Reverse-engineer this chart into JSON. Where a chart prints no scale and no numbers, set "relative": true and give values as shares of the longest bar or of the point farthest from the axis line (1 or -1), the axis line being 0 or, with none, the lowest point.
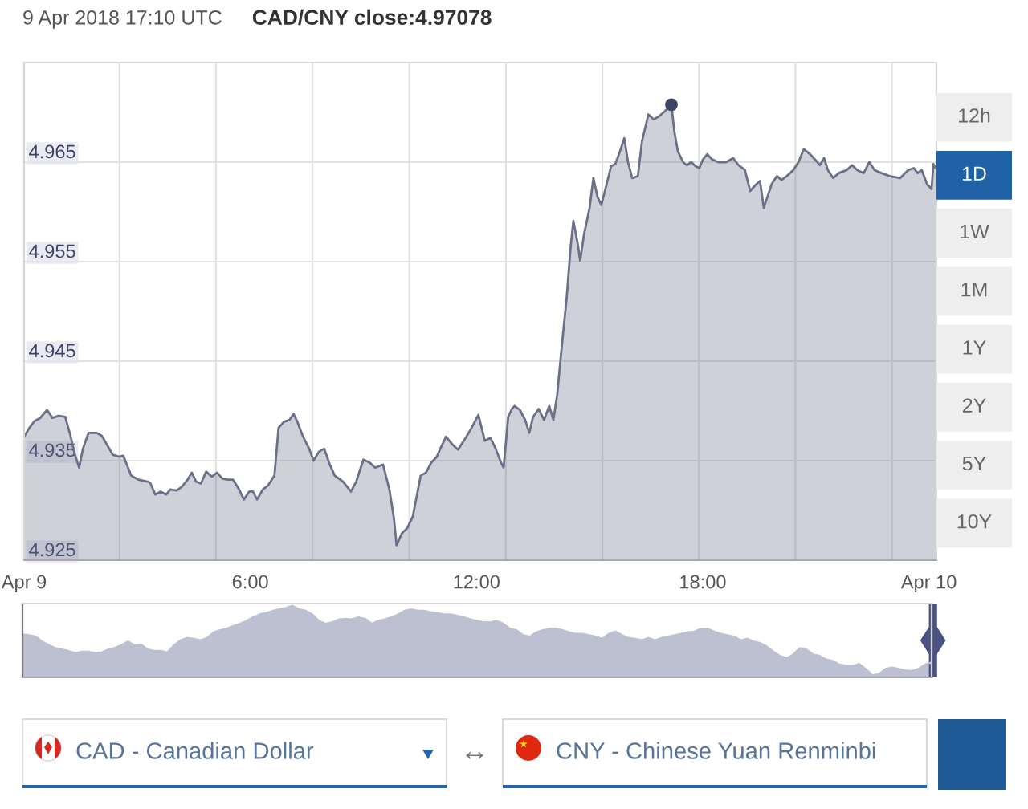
{
  "chart_data": [
    {
      "type": "area",
      "title": "9 Apr 2018 17:10 UTC",
      "subtitle": "CAD/CNY close:4.97078",
      "xlim": [
        0,
        24.2
      ],
      "xticks": [
        {
          "value": 0,
          "label": "Apr 9"
        },
        {
          "value": 2.53,
          "label": null
        },
        {
          "value": 5.09,
          "label": null
        },
        {
          "value": 6,
          "label": "6:00"
        },
        {
          "value": 7.65,
          "label": null
        },
        {
          "value": 10.22,
          "label": null
        },
        {
          "value": 12,
          "label": "12:00"
        },
        {
          "value": 12.78,
          "label": null
        },
        {
          "value": 15.34,
          "label": null
        },
        {
          "value": 17.9,
          "label": null
        },
        {
          "value": 18,
          "label": "18:00"
        },
        {
          "value": 20.46,
          "label": null
        },
        {
          "value": 23.02,
          "label": null
        },
        {
          "value": 24,
          "label": "Apr 10"
        }
      ],
      "ylim": [
        4.925,
        4.975
      ],
      "yticks": [
        4.925,
        4.935,
        4.945,
        4.955,
        4.965
      ],
      "grid": true,
      "series": [
        {
          "color": "#6b7089",
          "x": [
            0,
            0.14,
            0.28,
            0.43,
            0.61,
            0.75,
            0.92,
            1.09,
            1.21,
            1.35,
            1.46,
            1.56,
            1.71,
            1.92,
            2.06,
            2.2,
            2.35,
            2.52,
            2.63,
            2.84,
            3.03,
            3.27,
            3.34,
            3.48,
            3.62,
            3.77,
            3.88,
            4.05,
            4.19,
            4.34,
            4.45,
            4.56,
            4.69,
            4.83,
            4.98,
            5.12,
            5.26,
            5.4,
            5.54,
            5.69,
            5.83,
            5.97,
            6.07,
            6.18,
            6.33,
            6.47,
            6.64,
            6.75,
            6.89,
            7.04,
            7.15,
            7.25,
            7.39,
            7.56,
            7.68,
            7.82,
            7.96,
            8.1,
            8.24,
            8.46,
            8.67,
            8.81,
            9.0,
            9.17,
            9.31,
            9.52,
            9.69,
            9.81,
            9.88,
            10.02,
            10.16,
            10.31,
            10.52,
            10.66,
            10.8,
            10.95,
            11.04,
            11.19,
            11.37,
            11.51,
            11.73,
            11.87,
            12.05,
            12.22,
            12.37,
            12.51,
            12.65,
            12.72,
            12.84,
            12.94,
            13.01,
            13.15,
            13.29,
            13.4,
            13.5,
            13.65,
            13.79,
            13.93,
            14.04,
            14.14,
            14.26,
            14.39,
            14.5,
            14.57,
            14.68,
            14.75,
            14.85,
            15.0,
            15.1,
            15.21,
            15.31,
            15.42,
            15.57,
            15.68,
            15.78,
            15.92,
            16.02,
            16.13,
            16.28,
            16.39,
            16.56,
            16.7,
            16.84,
            16.99,
            17.17,
            17.25,
            17.34,
            17.48,
            17.58,
            17.7,
            17.81,
            17.91,
            18.01,
            18.12,
            18.24,
            18.41,
            18.62,
            18.81,
            18.95,
            19.12,
            19.26,
            19.4,
            19.52,
            19.62,
            19.69,
            19.83,
            19.97,
            20.09,
            20.23,
            20.4,
            20.54,
            20.68,
            20.85,
            20.97,
            21.11,
            21.22,
            21.32,
            21.46,
            21.61,
            21.82,
            21.96,
            22.1,
            22.27,
            22.42,
            22.56,
            22.74,
            22.96,
            23.24,
            23.45,
            23.6,
            23.7,
            23.81,
            23.95,
            24.07,
            24.12,
            24.18
          ],
          "values": [
            4.9374,
            4.9383,
            4.939,
            4.9393,
            4.9401,
            4.9393,
            4.9395,
            4.9394,
            4.9378,
            4.9356,
            4.9343,
            4.9362,
            4.9378,
            4.9378,
            4.9375,
            4.9366,
            4.9356,
            4.9354,
            4.9355,
            4.9335,
            4.9331,
            4.9329,
            4.9328,
            4.9316,
            4.9319,
            4.9316,
            4.9321,
            4.932,
            4.9324,
            4.9331,
            4.9338,
            4.9329,
            4.9327,
            4.9339,
            4.9334,
            4.9338,
            4.9332,
            4.9331,
            4.9331,
            4.9322,
            4.9311,
            4.9319,
            4.9319,
            4.9311,
            4.9321,
            4.9325,
            4.9335,
            4.9383,
            4.9389,
            4.9391,
            4.9397,
            4.9389,
            4.9375,
            4.9362,
            4.935,
            4.9359,
            4.9362,
            4.9347,
            4.9335,
            4.9329,
            4.9319,
            4.9329,
            4.9351,
            4.9348,
            4.9343,
            4.9346,
            4.9321,
            4.9292,
            4.9265,
            4.9277,
            4.9282,
            4.9294,
            4.9335,
            4.9338,
            4.9348,
            4.9354,
            4.9362,
            4.9374,
            4.9366,
            4.9361,
            4.9374,
            4.9383,
            4.9396,
            4.937,
            4.9373,
            4.9362,
            4.9348,
            4.9343,
            4.9394,
            4.9402,
            4.9405,
            4.9401,
            4.9391,
            4.9378,
            4.9394,
            4.9402,
            4.9391,
            4.9405,
            4.9391,
            4.9416,
            4.9464,
            4.9513,
            4.9566,
            4.9591,
            4.9569,
            4.9551,
            4.9577,
            4.9604,
            4.9634,
            4.9615,
            4.9607,
            4.9623,
            4.9646,
            4.9648,
            4.9658,
            4.9674,
            4.965,
            4.9634,
            4.9636,
            4.9671,
            4.9698,
            4.9693,
            4.9696,
            4.9701,
            4.97078,
            4.968,
            4.9661,
            4.965,
            4.9647,
            4.965,
            4.9646,
            4.9644,
            4.9653,
            4.9658,
            4.9653,
            4.965,
            4.965,
            4.9654,
            4.9647,
            4.9642,
            4.9621,
            4.9627,
            4.9631,
            4.9604,
            4.9612,
            4.9628,
            4.9636,
            4.9632,
            4.9636,
            4.9642,
            4.965,
            4.9663,
            4.9658,
            4.9653,
            4.9647,
            4.9654,
            4.9642,
            4.9634,
            4.9639,
            4.9642,
            4.9647,
            4.9642,
            4.9639,
            4.965,
            4.9642,
            4.9639,
            4.9636,
            4.9634,
            4.9642,
            4.9644,
            4.9639,
            4.9642,
            4.9628,
            4.9623,
            4.9648,
            4.9644
          ]
        },
        {
          "type": "scatter",
          "marker": "circle",
          "color": "#3d4466",
          "x": [
            17.17
          ],
          "values": [
            4.97078
          ]
        }
      ]
    },
    {
      "type": "other",
      "annotations": [
        "12h",
        "1D",
        "1W",
        "1M",
        "1Y",
        "2Y",
        "5Y",
        "10Y"
      ],
      "colors": [
        "#eeeeee",
        "#1f63a6",
        "#eeeeee",
        "#eeeeee",
        "#eeeeee",
        "#eeeeee",
        "#eeeeee",
        "#eeeeee"
      ]
    },
    {
      "type": "area",
      "relative": true,
      "categories": [
        null,
        null,
        null,
        null,
        null,
        null,
        null,
        null,
        null,
        null,
        null,
        null,
        null,
        null,
        null,
        null,
        null,
        null,
        null,
        null,
        null,
        null,
        null,
        null,
        null,
        null,
        null,
        null,
        null,
        null,
        null,
        null,
        null,
        null,
        null,
        null,
        null,
        null,
        null,
        null,
        null,
        null,
        null,
        null,
        null,
        null,
        null,
        null,
        null,
        null,
        null,
        null,
        null,
        null,
        null,
        null,
        null,
        null,
        null,
        null,
        null,
        null,
        null,
        null,
        null,
        null,
        null,
        null,
        null,
        null,
        null,
        null,
        null,
        null,
        null,
        null,
        null,
        null,
        null,
        null,
        null,
        null,
        null,
        null,
        null,
        null,
        null,
        null,
        null,
        null,
        null,
        null,
        null,
        null,
        null,
        null,
        null,
        null,
        null,
        null,
        null,
        null,
        null,
        null,
        null,
        null,
        null,
        null,
        null,
        null,
        null,
        null,
        null,
        null,
        null,
        null,
        null,
        null,
        null,
        null,
        null,
        null,
        null,
        null,
        null,
        null,
        null,
        null,
        null,
        null,
        null,
        null,
        null,
        null,
        null,
        null,
        null,
        null,
        null
      ],
      "series": [
        {
          "color": "#bcc0d1",
          "values": [
            0.6,
            0.59,
            0.57,
            0.5,
            0.45,
            0.41,
            0.39,
            0.37,
            0.34,
            0.36,
            0.36,
            0.34,
            0.35,
            0.39,
            0.41,
            0.45,
            0.5,
            0.45,
            0.46,
            0.39,
            0.37,
            0.37,
            0.35,
            0.45,
            0.52,
            0.55,
            0.54,
            0.52,
            0.55,
            0.63,
            0.66,
            0.68,
            0.72,
            0.75,
            0.79,
            0.84,
            0.88,
            0.9,
            0.93,
            0.95,
            0.97,
            1.0,
            0.95,
            0.93,
            0.88,
            0.79,
            0.75,
            0.77,
            0.81,
            0.82,
            0.81,
            0.84,
            0.82,
            0.75,
            0.79,
            0.81,
            0.84,
            0.88,
            0.93,
            0.95,
            0.93,
            0.93,
            0.91,
            0.9,
            0.88,
            0.88,
            0.86,
            0.84,
            0.81,
            0.79,
            0.77,
            0.77,
            0.79,
            0.75,
            0.68,
            0.66,
            0.59,
            0.57,
            0.63,
            0.66,
            0.68,
            0.68,
            0.66,
            0.63,
            0.61,
            0.61,
            0.59,
            0.57,
            0.54,
            0.61,
            0.64,
            0.59,
            0.55,
            0.54,
            0.52,
            0.55,
            0.52,
            0.55,
            0.57,
            0.59,
            0.61,
            0.63,
            0.64,
            0.68,
            0.68,
            0.64,
            0.61,
            0.59,
            0.57,
            0.52,
            0.54,
            0.5,
            0.48,
            0.43,
            0.36,
            0.3,
            0.27,
            0.32,
            0.41,
            0.39,
            0.32,
            0.3,
            0.25,
            0.23,
            0.18,
            0.16,
            0.16,
            0.19,
            0.12,
            0.03,
            0.05,
            0.12,
            0.14,
            0.12,
            0.1,
            0.09,
            0.12,
            0.18,
            0.21
          ]
        }
      ]
    },
    {
      "type": "other",
      "annotations": [
        "CAD - Canadian Dollar",
        "↔",
        "CNY - Chinese Yuan Renminbi"
      ]
    }
  ]
}
